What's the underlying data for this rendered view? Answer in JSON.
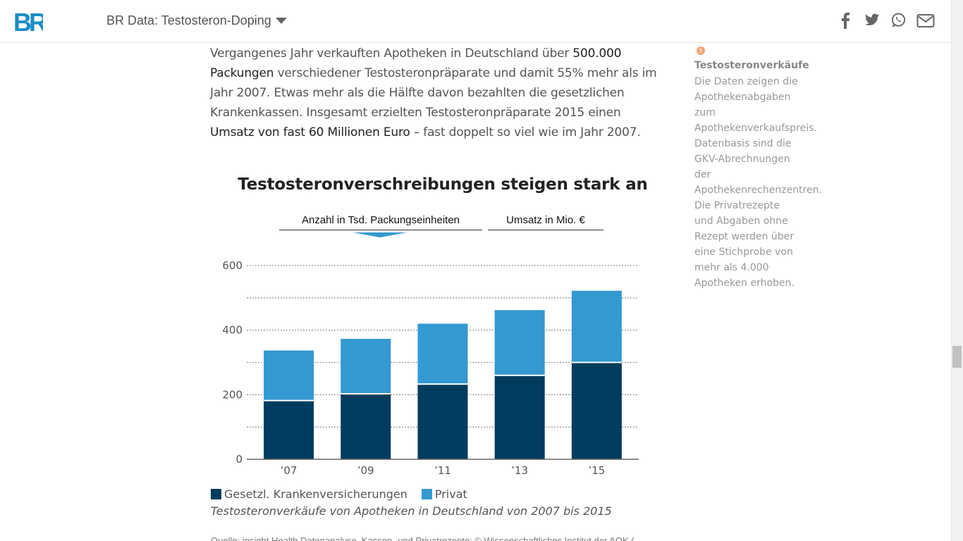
{
  "header": {
    "nav_title": "BR Data: Testosteron-Doping",
    "share_icons": [
      "facebook-icon",
      "twitter-icon",
      "whatsapp-icon",
      "mail-icon"
    ],
    "brand_color": "#1a8dc6"
  },
  "paragraph": {
    "part1": "Vergangenes Jahr verkauften Apotheken in Deutschland über ",
    "bold1": "500.000 Packungen",
    "part2": " verschiedener Testosteronpräparate und damit 55% mehr als im Jahr 2007. Etwas mehr als die Hälfte davon bezahlten die gesetzlichen Krankenkassen. Insgesamt erzielten Testosteronpräparate 2015 einen ",
    "bold2": "Umsatz von fast 60 Millionen Euro",
    "part3": " – fast doppelt so viel wie im Jahr 2007."
  },
  "chart": {
    "title": "Testosteronverschreibungen steigen stark an",
    "tabs": [
      "Anzahl in Tsd. Packungseinheiten",
      "Umsatz in Mio. €"
    ],
    "active_tab": 0,
    "legend": [
      "Gesetzl. Krankenversicherungen",
      "Privat"
    ],
    "caption": "Testosteronverkäufe von Apotheken in Deutschland von 2007 bis 2015",
    "source": "Quelle: insight Health Datenanalyse, Kassen- und Privatrezepte; © Wissenschaftliches Institut der AOK (WIdO), Datenbasis"
  },
  "chart_data": {
    "type": "bar",
    "stacked": true,
    "categories": [
      "’07",
      "’09",
      "’11",
      "’13",
      "’15"
    ],
    "series": [
      {
        "name": "Gesetzl. Krankenversicherungen",
        "values": [
          182,
          203,
          233,
          260,
          300
        ],
        "color": "#003c5d"
      },
      {
        "name": "Privat",
        "values": [
          155,
          170,
          187,
          202,
          222
        ],
        "color": "#3399d0"
      }
    ],
    "y_ticks": [
      "0",
      "200",
      "400",
      "600"
    ],
    "ylim": [
      0,
      600
    ],
    "grid": true
  },
  "sidebar_note": {
    "title": "Testosteronverkäufe",
    "lines": [
      "Die Daten zeigen die",
      "Apothekenabgaben",
      "zum",
      "Apothekenverkaufspreis.",
      "Datenbasis sind die",
      "GKV-Abrechnungen",
      "der",
      "Apothekenrechenzentren.",
      "Die Privatrezepte",
      "und Abgaben ohne",
      "Rezept werden über",
      "eine Stichprobe von",
      "mehr als 4.000",
      "Apotheken erhoben."
    ]
  }
}
